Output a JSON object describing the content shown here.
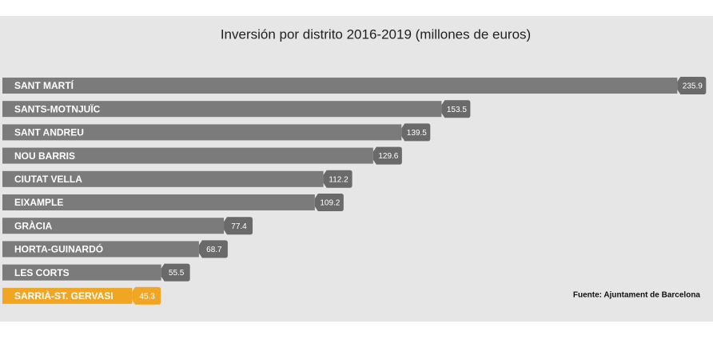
{
  "chart_data": {
    "type": "hbar",
    "title": "Inversión por distrito 2016-2019 (millones de euros)",
    "categories": [
      "SANT MARTÍ",
      "SANTS-MOTNJUÏC",
      "SANT ANDREU",
      "NOU BARRIS",
      "CIUTAT VELLA",
      "EIXAMPLE",
      "GRÀCIA",
      "HORTA-GUINARDÓ",
      "LES CORTS",
      "SARRIÀ-ST. GERVASI"
    ],
    "values": [
      235.9,
      153.5,
      139.5,
      129.6,
      112.2,
      109.2,
      77.4,
      68.7,
      55.5,
      45.3
    ],
    "colors": [
      "#7b7b7b",
      "#7b7b7b",
      "#7b7b7b",
      "#7b7b7b",
      "#7b7b7b",
      "#7b7b7b",
      "#7b7b7b",
      "#7b7b7b",
      "#7b7b7b",
      "#f0a623"
    ],
    "label_colors": [
      "#6a6a6a",
      "#6a6a6a",
      "#6a6a6a",
      "#6a6a6a",
      "#6a6a6a",
      "#6a6a6a",
      "#6a6a6a",
      "#6a6a6a",
      "#6a6a6a",
      "#f0a623"
    ],
    "xlim": [
      0,
      240
    ],
    "source": "Fuente: Ajuntament de Barcelona"
  }
}
